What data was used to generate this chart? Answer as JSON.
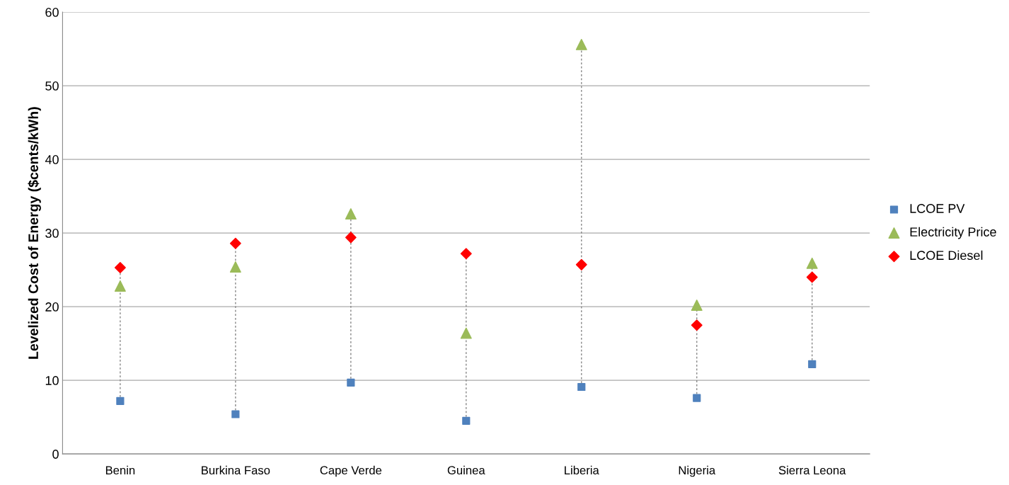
{
  "chart_data": {
    "type": "scatter",
    "ylabel": "Levelized Cost of Energy ($cents/kWh)",
    "categories": [
      "Benin",
      "Burkina Faso",
      "Cape Verde",
      "Guinea",
      "Liberia",
      "Nigeria",
      "Sierra Leona"
    ],
    "series": [
      {
        "name": "LCOE PV",
        "color": "#4f81bd",
        "marker": "square",
        "values": [
          7.2,
          5.4,
          9.7,
          4.5,
          9.1,
          7.6,
          12.2
        ]
      },
      {
        "name": "Electricity Price",
        "color": "#9bbb59",
        "marker": "triangle",
        "values": [
          22.8,
          25.4,
          32.6,
          16.4,
          55.6,
          20.2,
          25.9
        ]
      },
      {
        "name": "LCOE Diesel",
        "color": "#ff0000",
        "marker": "diamond",
        "values": [
          25.3,
          28.6,
          29.4,
          27.2,
          25.7,
          17.5,
          24.0
        ]
      }
    ],
    "ylim": [
      0,
      60
    ],
    "yticks": [
      0,
      10,
      20,
      30,
      40,
      50,
      60
    ],
    "grid": "y",
    "legend": "right"
  }
}
